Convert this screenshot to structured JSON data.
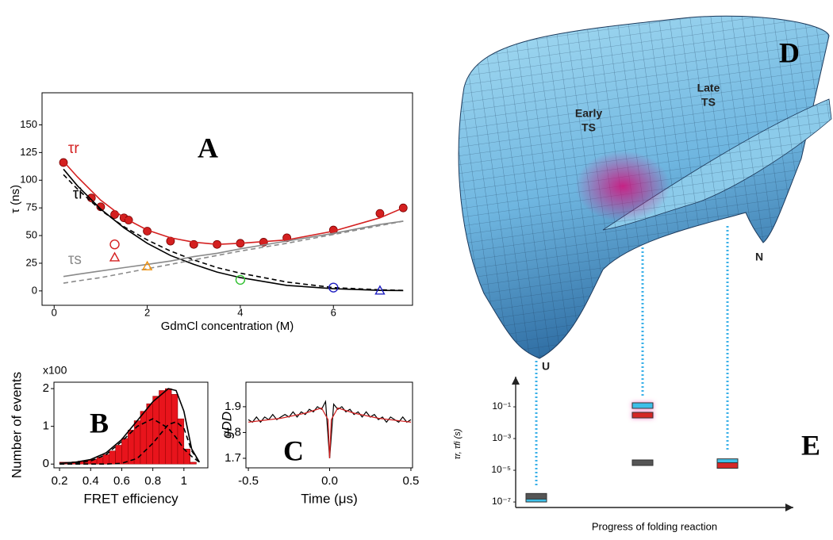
{
  "chart_data": [
    {
      "type": "line",
      "panel_label": "A",
      "xlabel": "GdmCl concentration (M)",
      "ylabel": "τ (ns)",
      "xlim": [
        -0.26,
        7.7
      ],
      "ylim": [
        -13,
        179
      ],
      "xticks": [
        0,
        2,
        4,
        6
      ],
      "yticks": [
        0,
        25,
        50,
        75,
        100,
        125,
        150
      ],
      "series": [
        {
          "name": "τr",
          "color": "#d42020",
          "marker": "dot",
          "x": [
            0.2,
            0.8,
            1.0,
            1.3,
            1.5,
            1.6,
            2.0,
            2.5,
            3.0,
            3.5,
            4.0,
            4.5,
            5.0,
            6.0,
            7.0,
            7.5
          ],
          "values": [
            116,
            84,
            76,
            69,
            66,
            64,
            54,
            45,
            42,
            42,
            43,
            44,
            48,
            55,
            70,
            75
          ]
        },
        {
          "color": "#d42020",
          "line": true,
          "x": [
            0.2,
            0.5,
            1,
            1.5,
            2,
            2.5,
            3,
            3.5,
            4,
            5,
            6,
            7,
            7.5
          ],
          "values": [
            117,
            103,
            82,
            66,
            55,
            48,
            44,
            42,
            43,
            46,
            54,
            66,
            75
          ]
        },
        {
          "name": "τi",
          "color": "#000000",
          "line": true,
          "x": [
            0.2,
            0.5,
            1,
            1.5,
            2,
            2.5,
            3,
            3.5,
            4,
            5,
            6,
            7,
            7.5
          ],
          "values": [
            110,
            95,
            74,
            57,
            43,
            32,
            24,
            17,
            12,
            5,
            2,
            0.5,
            0.3
          ]
        },
        {
          "color": "#000000",
          "line": true,
          "dash": true,
          "x": [
            0.2,
            0.5,
            1,
            1.5,
            2,
            2.5,
            3,
            3.5,
            4,
            5,
            6,
            7,
            7.5
          ],
          "values": [
            105,
            92,
            73,
            58,
            46,
            36,
            28,
            21,
            16,
            8,
            3,
            1,
            0.5
          ]
        },
        {
          "name": "τs",
          "color": "#8a8a8a",
          "line": true,
          "x": [
            0.2,
            0.5,
            1,
            1.5,
            2,
            2.5,
            3,
            3.5,
            4,
            5,
            6,
            7,
            7.5
          ],
          "values": [
            13,
            15,
            18,
            21,
            24,
            27,
            31,
            34,
            38,
            45,
            52,
            60,
            63
          ]
        },
        {
          "color": "#8a8a8a",
          "line": true,
          "dash": true,
          "x": [
            0.2,
            0.5,
            1,
            1.5,
            2,
            2.5,
            3,
            3.5,
            4,
            5,
            6,
            7,
            7.5
          ],
          "values": [
            7,
            9,
            12,
            16,
            20,
            24,
            28,
            32,
            36,
            43,
            51,
            59,
            63
          ]
        },
        {
          "color": "#d42020",
          "marker": "circle",
          "x": [
            1.3
          ],
          "values": [
            42
          ]
        },
        {
          "color": "#d42020",
          "marker": "triangle",
          "x": [
            1.3
          ],
          "values": [
            30
          ]
        },
        {
          "color": "#f0900a",
          "marker": "triangle",
          "x": [
            2.0
          ],
          "values": [
            22
          ]
        },
        {
          "color": "#30c030",
          "marker": "circle",
          "x": [
            4.0
          ],
          "values": [
            10
          ]
        },
        {
          "color": "#2020c0",
          "marker": "circle",
          "x": [
            6.0
          ],
          "values": [
            3
          ]
        },
        {
          "color": "#2020c0",
          "marker": "triangle",
          "x": [
            7.0
          ],
          "values": [
            0
          ]
        }
      ]
    },
    {
      "type": "histogram",
      "panel_label": "B",
      "xlabel": "FRET efficiency",
      "ylabel": "Number of events",
      "y_multiplier": "x100",
      "xlim": [
        0.164,
        1.154
      ],
      "ylim": [
        -0.1,
        2.17
      ],
      "xticks": [
        0.2,
        0.4,
        0.6,
        0.8,
        1.0
      ],
      "yticks": [
        0,
        1,
        2
      ],
      "color": "#e8141c",
      "bins": [
        0.2,
        0.24,
        0.28,
        0.32,
        0.36,
        0.4,
        0.44,
        0.48,
        0.52,
        0.56,
        0.6,
        0.64,
        0.68,
        0.72,
        0.76,
        0.8,
        0.84,
        0.88,
        0.92,
        0.96,
        1.0,
        1.04,
        1.08
      ],
      "values": [
        0.05,
        0.05,
        0.06,
        0.08,
        0.1,
        0.13,
        0.18,
        0.25,
        0.35,
        0.5,
        0.68,
        0.9,
        1.15,
        1.4,
        1.6,
        1.8,
        1.95,
        2.0,
        1.85,
        1.2,
        0.4,
        0.05
      ],
      "series": [
        {
          "color": "#000000",
          "x": [
            0.2,
            0.3,
            0.4,
            0.5,
            0.6,
            0.7,
            0.8,
            0.9,
            0.95,
            1.0,
            1.05,
            1.1
          ],
          "values": [
            0.02,
            0.05,
            0.12,
            0.3,
            0.65,
            1.15,
            1.65,
            2.0,
            1.95,
            1.4,
            0.4,
            0.05
          ]
        },
        {
          "color": "#000000",
          "dash": true,
          "x": [
            0.2,
            0.3,
            0.4,
            0.5,
            0.6,
            0.7,
            0.8,
            0.9,
            0.95,
            1.0,
            1.05,
            1.1
          ],
          "values": [
            0,
            0.02,
            0.08,
            0.25,
            0.6,
            1.0,
            1.2,
            0.95,
            0.7,
            0.4,
            0.2,
            0.05
          ]
        },
        {
          "color": "#000000",
          "dash": true,
          "x": [
            0.2,
            0.3,
            0.4,
            0.5,
            0.6,
            0.7,
            0.8,
            0.9,
            0.95,
            1.0,
            1.05,
            1.1
          ],
          "values": [
            0,
            0,
            0,
            0,
            0.02,
            0.15,
            0.55,
            1.05,
            1.12,
            0.95,
            0.35,
            0.05
          ]
        }
      ]
    },
    {
      "type": "line",
      "panel_label": "C",
      "xlabel": "Time (μs)",
      "ylabel": "gDD",
      "xlim": [
        -0.515,
        0.51
      ],
      "ylim": [
        1.663,
        1.995
      ],
      "xticks": [
        -0.5,
        {
          "value": 0,
          "label": "0.0"
        },
        0.5
      ],
      "yticks": [
        1.7,
        1.8,
        1.9
      ],
      "series": [
        {
          "color": "#000000",
          "line": true,
          "x": [
            -0.5,
            -0.475,
            -0.45,
            -0.425,
            -0.4,
            -0.375,
            -0.35,
            -0.325,
            -0.3,
            -0.275,
            -0.25,
            -0.225,
            -0.2,
            -0.175,
            -0.15,
            -0.125,
            -0.1,
            -0.075,
            -0.05,
            -0.025,
            0,
            0.025,
            0.05,
            0.075,
            0.1,
            0.125,
            0.15,
            0.175,
            0.2,
            0.225,
            0.25,
            0.275,
            0.3,
            0.325,
            0.35,
            0.375,
            0.4,
            0.425,
            0.45,
            0.475,
            0.5
          ],
          "values": [
            1.85,
            1.84,
            1.86,
            1.84,
            1.86,
            1.85,
            1.87,
            1.85,
            1.86,
            1.87,
            1.86,
            1.88,
            1.86,
            1.88,
            1.87,
            1.89,
            1.88,
            1.9,
            1.89,
            1.92,
            1.7,
            1.91,
            1.89,
            1.9,
            1.88,
            1.89,
            1.87,
            1.88,
            1.86,
            1.88,
            1.86,
            1.87,
            1.85,
            1.86,
            1.84,
            1.86,
            1.85,
            1.84,
            1.86,
            1.84,
            1.85
          ]
        },
        {
          "color": "#d42020",
          "line": true,
          "x": [
            -0.5,
            -0.3,
            -0.15,
            -0.05,
            -0.01,
            0,
            0.01,
            0.05,
            0.15,
            0.3,
            0.5
          ],
          "values": [
            1.84,
            1.855,
            1.875,
            1.895,
            1.85,
            1.7,
            1.85,
            1.895,
            1.875,
            1.855,
            1.84
          ]
        }
      ]
    },
    {
      "type": "scatter",
      "panel_label": "E",
      "xlabel": "Progress of folding reaction",
      "ylabel": "τr, τfi (s)",
      "ylog": true,
      "ylim": [
        4.5e-08,
        8
      ],
      "yticks": [
        {
          "value": 0.1,
          "label": "10⁻¹"
        },
        {
          "value": 0.001,
          "label": "10⁻³"
        },
        {
          "value": 1e-05,
          "label": "10⁻⁵"
        },
        {
          "value": 1e-07,
          "label": "10⁻⁷"
        }
      ],
      "series": [
        {
          "color": "#3ec0e8",
          "values": [
            1.5e-07,
            0.12,
            3.5e-05
          ]
        },
        {
          "color": "#d42828",
          "values": [
            null,
            0.03,
            2e-05
          ]
        },
        {
          "color": "#555555",
          "values": [
            2.3e-07,
            3e-05,
            null
          ]
        }
      ]
    }
  ],
  "diagram": {
    "panel_label": "D",
    "labels": {
      "early_ts": [
        "Early",
        "TS"
      ],
      "late_ts": [
        "Late",
        "TS"
      ],
      "native": "N",
      "unfolded": "U"
    }
  }
}
